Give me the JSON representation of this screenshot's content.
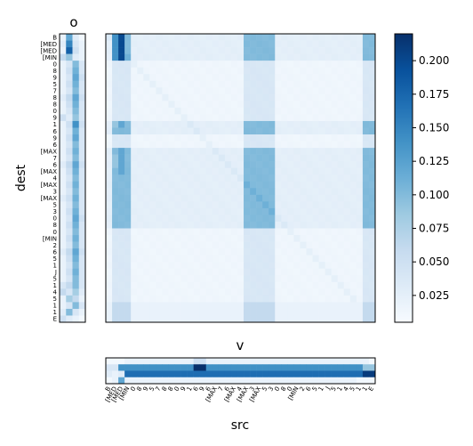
{
  "chart_data": [
    {
      "type": "heatmap",
      "panel": "o",
      "title": "o",
      "ylabel": "dest",
      "ytick_labels": [
        "B",
        "[MED",
        "[MED",
        "[MIN",
        "0",
        "8",
        "9",
        "5",
        "7",
        "8",
        "8",
        "0",
        "9",
        "1",
        "6",
        "9",
        "6",
        "[MAX",
        "7",
        "6",
        "[MAX",
        "4",
        "[MAX",
        "3",
        "[MAX",
        "5",
        "3",
        "0",
        "8",
        "0",
        "[MIN",
        "2",
        "6",
        "5",
        "1",
        "J",
        "5",
        "1",
        "4",
        "5",
        "1",
        "1",
        "E"
      ],
      "columns": 4,
      "note_cols": "column intensities per row, 0-0.22 scale",
      "values": [
        [
          0.02,
          0.12,
          0.03,
          0.01
        ],
        [
          0.03,
          0.15,
          0.04,
          0.02
        ],
        [
          0.02,
          0.18,
          0.05,
          0.02
        ],
        [
          0.06,
          0.09,
          0.03,
          0.02
        ],
        [
          0.02,
          0.04,
          0.1,
          0.04
        ],
        [
          0.02,
          0.05,
          0.11,
          0.04
        ],
        [
          0.02,
          0.04,
          0.12,
          0.05
        ],
        [
          0.02,
          0.05,
          0.11,
          0.04
        ],
        [
          0.02,
          0.04,
          0.1,
          0.04
        ],
        [
          0.03,
          0.06,
          0.12,
          0.05
        ],
        [
          0.02,
          0.05,
          0.11,
          0.04
        ],
        [
          0.02,
          0.04,
          0.1,
          0.04
        ],
        [
          0.05,
          0.03,
          0.09,
          0.04
        ],
        [
          0.02,
          0.05,
          0.14,
          0.05
        ],
        [
          0.02,
          0.04,
          0.11,
          0.04
        ],
        [
          0.02,
          0.05,
          0.12,
          0.04
        ],
        [
          0.02,
          0.04,
          0.1,
          0.04
        ],
        [
          0.02,
          0.05,
          0.11,
          0.04
        ],
        [
          0.02,
          0.04,
          0.1,
          0.04
        ],
        [
          0.03,
          0.06,
          0.12,
          0.05
        ],
        [
          0.02,
          0.05,
          0.11,
          0.04
        ],
        [
          0.02,
          0.04,
          0.1,
          0.04
        ],
        [
          0.02,
          0.05,
          0.11,
          0.04
        ],
        [
          0.02,
          0.04,
          0.1,
          0.04
        ],
        [
          0.03,
          0.05,
          0.11,
          0.04
        ],
        [
          0.02,
          0.04,
          0.1,
          0.04
        ],
        [
          0.02,
          0.05,
          0.11,
          0.04
        ],
        [
          0.02,
          0.04,
          0.12,
          0.05
        ],
        [
          0.02,
          0.05,
          0.11,
          0.04
        ],
        [
          0.02,
          0.04,
          0.1,
          0.04
        ],
        [
          0.02,
          0.05,
          0.11,
          0.04
        ],
        [
          0.02,
          0.04,
          0.1,
          0.04
        ],
        [
          0.03,
          0.06,
          0.12,
          0.05
        ],
        [
          0.02,
          0.05,
          0.11,
          0.04
        ],
        [
          0.02,
          0.04,
          0.1,
          0.04
        ],
        [
          0.02,
          0.05,
          0.11,
          0.04
        ],
        [
          0.02,
          0.04,
          0.1,
          0.04
        ],
        [
          0.04,
          0.06,
          0.1,
          0.04
        ],
        [
          0.06,
          0.04,
          0.08,
          0.03
        ],
        [
          0.02,
          0.08,
          0.06,
          0.02
        ],
        [
          0.02,
          0.04,
          0.1,
          0.04
        ],
        [
          0.03,
          0.1,
          0.04,
          0.02
        ],
        [
          0.05,
          0.03,
          0.02,
          0.01
        ]
      ]
    },
    {
      "type": "heatmap",
      "panel": "main",
      "size": 43,
      "colorbar_ticks": [
        "0.025",
        "0.050",
        "0.075",
        "0.100",
        "0.125",
        "0.150",
        "0.175",
        "0.200"
      ],
      "colorbar_range": [
        0.005,
        0.22
      ],
      "strong_cols": [
        1,
        2,
        3,
        22,
        23,
        24,
        25,
        26,
        41,
        42
      ],
      "strong_rows": [
        0,
        1,
        2,
        3,
        13,
        14,
        17,
        18,
        19,
        20,
        21,
        22,
        23,
        24,
        25,
        26,
        27,
        28,
        41,
        42
      ]
    },
    {
      "type": "heatmap",
      "panel": "v",
      "title": "v",
      "xlabel": "src",
      "rows": 4,
      "xtick_labels": [
        "B",
        "[MED",
        "[MED",
        "[MIN",
        "0",
        "8",
        "9",
        "5",
        "7",
        "8",
        "8",
        "0",
        "9",
        "1",
        "6",
        "9",
        "6",
        "[MAX",
        "7",
        "6",
        "[MAX",
        "4",
        "[MAX",
        "3",
        "[MAX",
        "5",
        "3",
        "0",
        "8",
        "0",
        "[MIN",
        "2",
        "6",
        "5",
        "1",
        "J",
        "5",
        "1",
        "4",
        "5",
        "1",
        "1",
        "E"
      ]
    }
  ]
}
